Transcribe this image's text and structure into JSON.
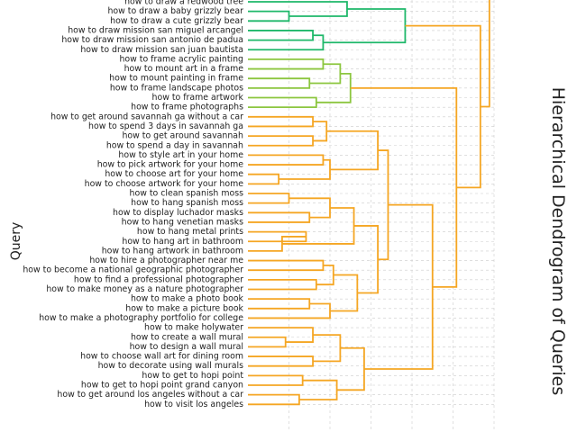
{
  "chart_data": {
    "type": "dendrogram",
    "title": "Hierarchical Dendrogram of Queries",
    "ylabel": "Query",
    "xlabel": "",
    "colors": {
      "green": "#1fb86a",
      "lime": "#8cc63f",
      "orange": "#f5a623",
      "grid": "#cccccc"
    },
    "leaves": [
      {
        "label": "how to draw a redwood tree",
        "cluster": "green"
      },
      {
        "label": "how to draw a baby grizzly bear",
        "cluster": "green"
      },
      {
        "label": "how to draw a cute grizzly bear",
        "cluster": "green"
      },
      {
        "label": "how to draw mission san miguel arcangel",
        "cluster": "green"
      },
      {
        "label": "how to draw mission san antonio de padua",
        "cluster": "green"
      },
      {
        "label": "how to draw mission san juan bautista",
        "cluster": "green"
      },
      {
        "label": "how to frame acrylic painting",
        "cluster": "lime"
      },
      {
        "label": "how to mount art in a frame",
        "cluster": "lime"
      },
      {
        "label": "how to mount painting in frame",
        "cluster": "lime"
      },
      {
        "label": "how to frame landscape photos",
        "cluster": "lime"
      },
      {
        "label": "how to frame artwork",
        "cluster": "lime"
      },
      {
        "label": "how to frame photographs",
        "cluster": "lime"
      },
      {
        "label": "how to get around savannah ga without a car",
        "cluster": "orange"
      },
      {
        "label": "how to spend 3 days in savannah ga",
        "cluster": "orange"
      },
      {
        "label": "how to get around savannah",
        "cluster": "orange"
      },
      {
        "label": "how to spend a day in savannah",
        "cluster": "orange"
      },
      {
        "label": "how to style art in your home",
        "cluster": "orange"
      },
      {
        "label": "how to pick artwork for your home",
        "cluster": "orange"
      },
      {
        "label": "how to choose art for your home",
        "cluster": "orange"
      },
      {
        "label": "how to choose artwork for your home",
        "cluster": "orange"
      },
      {
        "label": "how to clean spanish moss",
        "cluster": "orange"
      },
      {
        "label": "how to hang spanish moss",
        "cluster": "orange"
      },
      {
        "label": "how to display luchador masks",
        "cluster": "orange"
      },
      {
        "label": "how to hang venetian masks",
        "cluster": "orange"
      },
      {
        "label": "how to hang metal prints",
        "cluster": "orange"
      },
      {
        "label": "how to hang art in bathroom",
        "cluster": "orange"
      },
      {
        "label": "how to hang artwork in bathroom",
        "cluster": "orange"
      },
      {
        "label": "how to hire a photographer near me",
        "cluster": "orange"
      },
      {
        "label": "how to become a national geographic photographer",
        "cluster": "orange"
      },
      {
        "label": "how to find a professional photographer",
        "cluster": "orange"
      },
      {
        "label": "how to make money as a nature photographer",
        "cluster": "orange"
      },
      {
        "label": "how to make a photo book",
        "cluster": "orange"
      },
      {
        "label": "how to make a picture book",
        "cluster": "orange"
      },
      {
        "label": "how to make a photography portfolio for college",
        "cluster": "orange"
      },
      {
        "label": "how to make holywater",
        "cluster": "orange"
      },
      {
        "label": "how to create a wall mural",
        "cluster": "orange"
      },
      {
        "label": "how to design a wall mural",
        "cluster": "orange"
      },
      {
        "label": "how to choose wall art for dining room",
        "cluster": "orange"
      },
      {
        "label": "how to decorate using wall murals",
        "cluster": "orange"
      },
      {
        "label": "how to get to hopi point",
        "cluster": "orange"
      },
      {
        "label": "how to get to hopi point grand canyon",
        "cluster": "orange"
      },
      {
        "label": "how to get around los angeles without a car",
        "cluster": "orange"
      },
      {
        "label": "how to visit los angeles",
        "cluster": "orange"
      }
    ],
    "merges": [
      {
        "a": 1,
        "b": 2,
        "height": 0.6,
        "cluster": "green"
      },
      {
        "a": 0,
        "b": "m0",
        "height": 1.45,
        "cluster": "green"
      },
      {
        "a": 3,
        "b": 4,
        "height": 0.95,
        "cluster": "green"
      },
      {
        "a": "m2",
        "b": 5,
        "height": 1.1,
        "cluster": "green"
      },
      {
        "a": "m1",
        "b": "m3",
        "height": 2.3,
        "cluster": "green"
      },
      {
        "a": 6,
        "b": 7,
        "height": 1.1,
        "cluster": "lime"
      },
      {
        "a": 8,
        "b": 9,
        "height": 0.9,
        "cluster": "lime"
      },
      {
        "a": "m5",
        "b": "m6",
        "height": 1.35,
        "cluster": "lime"
      },
      {
        "a": 10,
        "b": 11,
        "height": 1.0,
        "cluster": "lime"
      },
      {
        "a": "m7",
        "b": "m8",
        "height": 1.5,
        "cluster": "lime"
      },
      {
        "a": 12,
        "b": 13,
        "height": 0.95,
        "cluster": "orange"
      },
      {
        "a": 14,
        "b": 15,
        "height": 0.95,
        "cluster": "orange"
      },
      {
        "a": "m10",
        "b": "m11",
        "height": 1.15,
        "cluster": "orange"
      },
      {
        "a": 16,
        "b": 17,
        "height": 1.1,
        "cluster": "orange"
      },
      {
        "a": 18,
        "b": 19,
        "height": 0.45,
        "cluster": "orange"
      },
      {
        "a": "m13",
        "b": "m14",
        "height": 1.2,
        "cluster": "orange"
      },
      {
        "a": "m12",
        "b": "m15",
        "height": 1.9,
        "cluster": "orange"
      },
      {
        "a": 20,
        "b": 21,
        "height": 0.6,
        "cluster": "orange"
      },
      {
        "a": 22,
        "b": 23,
        "height": 0.9,
        "cluster": "orange"
      },
      {
        "a": "m17",
        "b": "m18",
        "height": 1.2,
        "cluster": "orange"
      },
      {
        "a": 24,
        "b": 25,
        "height": 0.85,
        "cluster": "orange"
      },
      {
        "a": "m20",
        "b": 26,
        "height": 0.5,
        "cluster": "orange"
      },
      {
        "a": "m19",
        "b": "m21",
        "height": 1.55,
        "cluster": "orange"
      },
      {
        "a": 27,
        "b": 28,
        "height": 1.1,
        "cluster": "orange"
      },
      {
        "a": 29,
        "b": 30,
        "height": 1.0,
        "cluster": "orange"
      },
      {
        "a": "m23",
        "b": "m24",
        "height": 1.25,
        "cluster": "orange"
      },
      {
        "a": 31,
        "b": 32,
        "height": 0.9,
        "cluster": "orange"
      },
      {
        "a": "m26",
        "b": 33,
        "height": 1.2,
        "cluster": "orange"
      },
      {
        "a": "m25",
        "b": "m27",
        "height": 1.6,
        "cluster": "orange"
      },
      {
        "a": "m22",
        "b": "m28",
        "height": 1.9,
        "cluster": "orange"
      },
      {
        "a": "m16",
        "b": "m29",
        "height": 2.05,
        "cluster": "orange"
      },
      {
        "a": 35,
        "b": 36,
        "height": 0.55,
        "cluster": "orange"
      },
      {
        "a": 34,
        "b": "m31",
        "height": 0.95,
        "cluster": "orange"
      },
      {
        "a": 37,
        "b": 38,
        "height": 0.95,
        "cluster": "orange"
      },
      {
        "a": "m32",
        "b": "m33",
        "height": 1.35,
        "cluster": "orange"
      },
      {
        "a": 39,
        "b": 40,
        "height": 0.8,
        "cluster": "orange"
      },
      {
        "a": 41,
        "b": 42,
        "height": 0.75,
        "cluster": "orange"
      },
      {
        "a": "m35",
        "b": "m36",
        "height": 1.3,
        "cluster": "orange"
      },
      {
        "a": "m34",
        "b": "m37",
        "height": 1.7,
        "cluster": "orange"
      },
      {
        "a": "m30",
        "b": "m38",
        "height": 2.7,
        "cluster": "orange"
      },
      {
        "a": "m9",
        "b": "m39",
        "height": 3.05,
        "cluster": "orange"
      },
      {
        "a": "m4",
        "b": "m40",
        "height": 3.4,
        "cluster": "orange"
      }
    ],
    "xlim": [
      0,
      3.6
    ],
    "grid": true,
    "legend": "none"
  }
}
